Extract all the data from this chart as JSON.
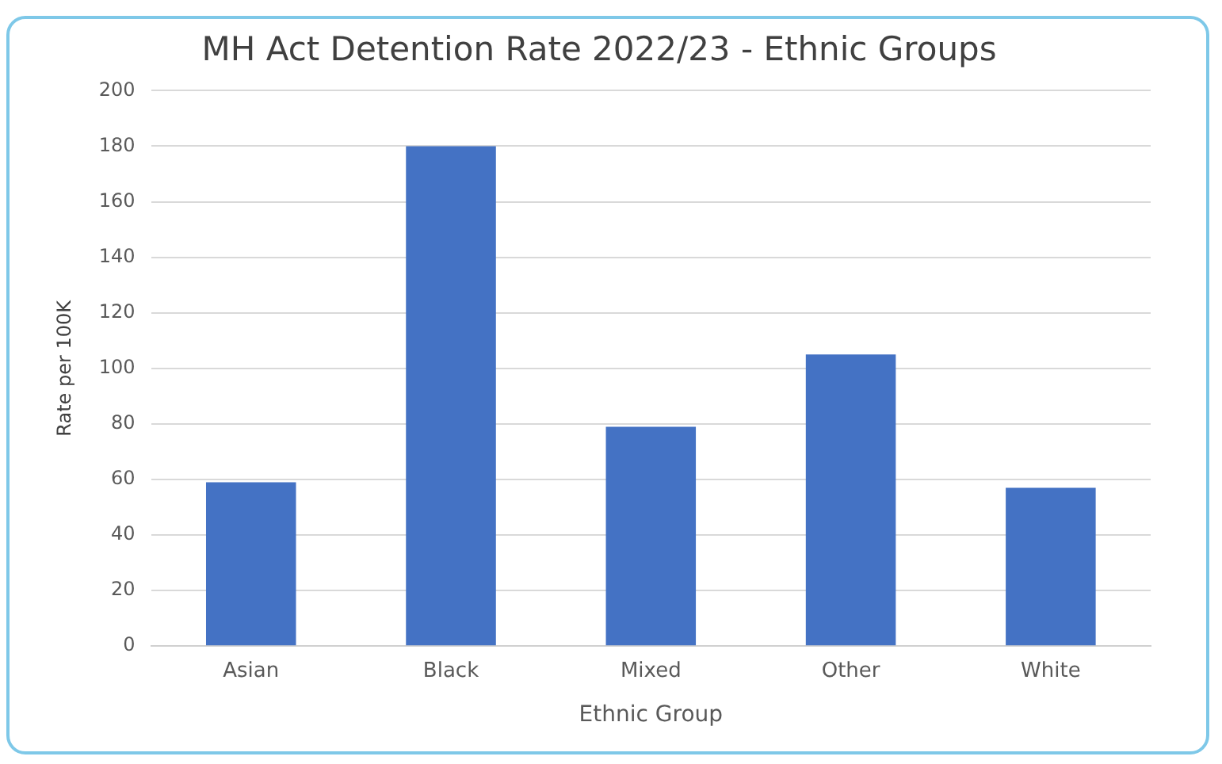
{
  "chart_data": {
    "type": "bar",
    "title": "MH Act Detention Rate 2022/23 - Ethnic Groups",
    "xlabel": "Ethnic Group",
    "ylabel": "Rate per 100K",
    "categories": [
      "Asian",
      "Black",
      "Mixed",
      "Other",
      "White"
    ],
    "values": [
      59,
      180,
      79,
      105,
      57
    ],
    "color": "#4472c4",
    "ylim": [
      0,
      200
    ],
    "yticks": [
      0,
      20,
      40,
      60,
      80,
      100,
      120,
      140,
      160,
      180,
      200
    ],
    "grid": "y",
    "legend": false
  }
}
